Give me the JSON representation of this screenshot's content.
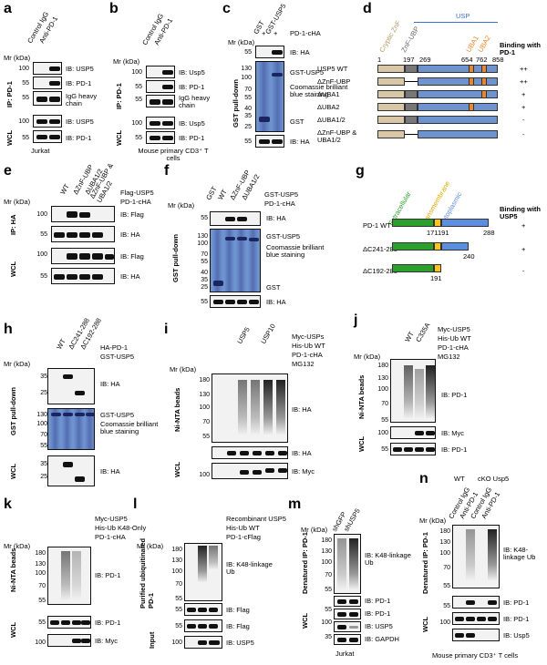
{
  "panels": {
    "a": "a",
    "b": "b",
    "c": "c",
    "d": "d",
    "e": "e",
    "f": "f",
    "g": "g",
    "h": "h",
    "i": "i",
    "j": "j",
    "k": "k",
    "l": "l",
    "m": "m",
    "n": "n"
  },
  "common": {
    "mr": "Mr (kDa)",
    "wcl": "WCL",
    "plus": "+",
    "minus": "-"
  },
  "a": {
    "lanes": [
      "Control IgG",
      "Anti-PD-1"
    ],
    "ip": "IP: PD-1",
    "ib": [
      "IB: USP5",
      "IB: PD-1",
      "IgG heavy chain",
      "IB: USP5",
      "IB: PD-1"
    ],
    "markers": [
      "100",
      "55",
      "55",
      "100",
      "55"
    ],
    "cell": "Jurkat"
  },
  "b": {
    "lanes": [
      "Control IgG",
      "Anti-PD-1"
    ],
    "ip": "IP: PD-1",
    "ib": [
      "IB: Usp5",
      "IB: PD-1",
      "IgG heavy chain",
      "IB: Usp5",
      "IB: PD-1"
    ],
    "markers": [
      "100",
      "55",
      "55",
      "100",
      "55"
    ],
    "cell": "Mouse primary CD3⁺ T cells"
  },
  "c": {
    "lanes": [
      "GST",
      "GST-USP5"
    ],
    "rows": [
      "PD-1-cHA"
    ],
    "side": "GST pull-down",
    "ib": [
      "IB: HA",
      "GST-USP5",
      "Coomassie brilliant blue staining",
      "GST",
      "IB: HA"
    ],
    "markers": [
      "55",
      "130",
      "100",
      "70",
      "55",
      "40",
      "35",
      "25",
      "55"
    ]
  },
  "d": {
    "usp": "USP",
    "znf": "Cryptic ZnF",
    "znfubp": "ZnF-UBP",
    "uba1": "UBA1",
    "uba2": "UBA2",
    "binding": "Binding with PD-1",
    "nums": [
      "1",
      "197",
      "269",
      "654",
      "762",
      "858"
    ],
    "rows": [
      {
        "name": "USP5 WT",
        "b": "++"
      },
      {
        "name": "ΔZnF-UBP",
        "b": "++"
      },
      {
        "name": "ΔUBA1",
        "b": "+"
      },
      {
        "name": "ΔUBA2",
        "b": "+"
      },
      {
        "name": "ΔUBA1/2",
        "b": "-"
      },
      {
        "name": "ΔZnF-UBP & UBA1/2",
        "b": "-"
      }
    ]
  },
  "e": {
    "lanes": [
      "WT",
      "ΔZnF-UBP",
      "ΔUBA1/2",
      "ΔZnF-UBP & UBA1/2"
    ],
    "rows": [
      "Flag-USP5",
      "PD-1-cHA"
    ],
    "ip": "IP: HA",
    "ib": [
      "IB: Flag",
      "IB: HA",
      "IB: Flag",
      "IB: HA"
    ],
    "markers": [
      "100",
      "55",
      "100",
      "55"
    ]
  },
  "f": {
    "lanes": [
      "GST",
      "WT",
      "ΔZnF-UBP",
      "ΔUBA1/2"
    ],
    "rows": [
      "GST-USP5",
      "PD-1-cHA"
    ],
    "side": "GST pull-down",
    "ib": [
      "IB: HA",
      "GST-USP5",
      "Coomassie brilliant blue staining",
      "GST",
      "IB: HA"
    ],
    "markers": [
      "55",
      "130",
      "100",
      "70",
      "55",
      "40",
      "35",
      "25",
      "55"
    ]
  },
  "g": {
    "ex": "Extracellular",
    "tm": "Transmembrane",
    "cy": "Cytoplasmic",
    "binding": "Binding with USP5",
    "rows": [
      {
        "name": "PD-1 WT",
        "b": "+"
      },
      {
        "name": "ΔC241-288",
        "b": "+"
      },
      {
        "name": "ΔC192-288",
        "b": "-"
      }
    ],
    "nums": [
      "171",
      "191",
      "288",
      "240",
      "191"
    ]
  },
  "h": {
    "lanes": [
      "WT",
      "ΔC241-288",
      "ΔC192-288"
    ],
    "rows": [
      "HA-PD-1",
      "GST-USP5"
    ],
    "side": "GST pull-down",
    "ib": [
      "IB: HA",
      "GST-USP5",
      "Coomassie brilliant blue staining",
      "IB: HA"
    ],
    "markers": [
      "35",
      "25",
      "130",
      "100",
      "70",
      "55",
      "35",
      "25"
    ]
  },
  "i": {
    "lanes": [
      "USP5",
      "USP10"
    ],
    "rows": [
      "Myc-USPs",
      "His-Ub WT",
      "PD-1-cHA",
      "MG132"
    ],
    "side": "Ni-NTA beads",
    "ib": [
      "IB: HA",
      "IB: HA",
      "IB: Myc"
    ],
    "markers": [
      "180",
      "130",
      "100",
      "70",
      "55",
      "100"
    ]
  },
  "j": {
    "lanes": [
      "WT",
      "C335A"
    ],
    "rows": [
      "Myc-USP5",
      "His-Ub WT",
      "PD-1-cHA",
      "MG132"
    ],
    "side": "Ni-NTA beads",
    "ib": [
      "IB: PD-1",
      "IB: Myc",
      "IB: PD-1"
    ],
    "markers": [
      "180",
      "130",
      "100",
      "70",
      "55",
      "100",
      "55"
    ]
  },
  "k": {
    "rows": [
      "Myc-USP5",
      "His-Ub K48-Only",
      "PD-1-cHA"
    ],
    "side": "Ni-NTA beads",
    "ib": [
      "IB: PD-1",
      "IB: PD-1",
      "IB: Myc"
    ],
    "markers": [
      "180",
      "130",
      "100",
      "70",
      "55",
      "55",
      "100"
    ]
  },
  "l": {
    "rows": [
      "Recombinant USP5",
      "His-Ub WT",
      "PD-1-cFlag"
    ],
    "side": "Purified ubiquitinated PD-1",
    "input": "Input",
    "ib": [
      "IB: K48-linkage Ub",
      "IB: Flag",
      "IB: Flag",
      "IB: USP5"
    ],
    "markers": [
      "180",
      "130",
      "100",
      "70",
      "55",
      "55",
      "55",
      "100"
    ]
  },
  "m": {
    "lanes": [
      "shGFP",
      "shUSP5"
    ],
    "side": "Denatured IP: PD-1",
    "ib": [
      "IB: K48-linkage Ub",
      "IB: PD-1",
      "IB: PD-1",
      "IB: USP5",
      "IB: GAPDH"
    ],
    "markers": [
      "180",
      "130",
      "100",
      "70",
      "55",
      "55",
      "100",
      "35"
    ],
    "cell": "Jurkat"
  },
  "n": {
    "groups": [
      "WT",
      "cKO Usp5"
    ],
    "lanes": [
      "Control IgG",
      "Anti-PD-1",
      "Control IgG",
      "Anti-PD-1"
    ],
    "side": "Denatured IP: PD-1",
    "ib": [
      "IB: K48-linkage Ub",
      "IB: PD-1",
      "IB: PD-1",
      "IB: Usp5"
    ],
    "markers": [
      "180",
      "130",
      "100",
      "70",
      "55",
      "55",
      "100"
    ],
    "cell": "Mouse primary CD3⁺ T cells"
  },
  "colors": {
    "gel": "#6f93cf",
    "znf": "#d8c8a8",
    "znfubp": "#777777",
    "usp": "#6f93cf",
    "uba": "#e8872c",
    "ex": "#2ca02c",
    "tm": "#ffc31a",
    "cy": "#5d8fe0"
  }
}
